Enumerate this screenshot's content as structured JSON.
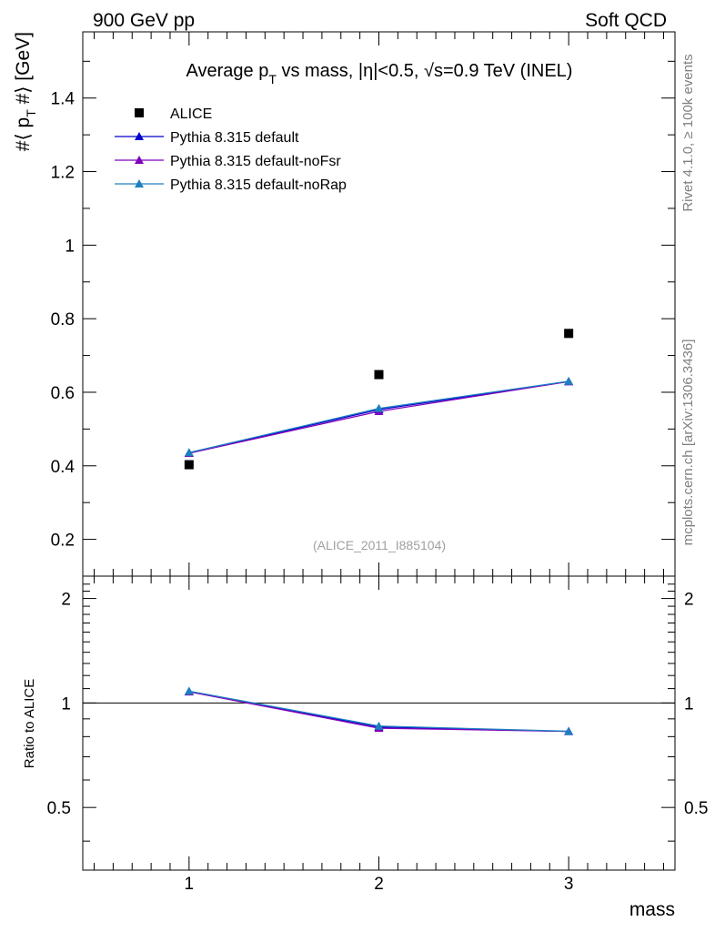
{
  "header": {
    "left_label": "900 GeV pp",
    "right_label": "Soft QCD"
  },
  "side_labels": {
    "rivet": "Rivet 4.1.0, ≥ 100k events",
    "mcplots": "mcplots.cern.ch [arXiv:1306.3436]"
  },
  "chart_data": {
    "type": "scatter",
    "title_parts": {
      "a": "Average p",
      "sub": "T",
      "b": " vs mass, |η|<0.5, √s=0.9 TeV (INEL)"
    },
    "watermark": "(ALICE_2011_I885104)",
    "ylabel_parts": {
      "a": "#⟨ p",
      "sub": "T",
      "b": " #⟩ [GeV]"
    },
    "xlabel": "mass",
    "ratio_ylabel": "Ratio to ALICE",
    "xlim": [
      0.44,
      3.56
    ],
    "ylim": [
      0.1,
      1.58
    ],
    "ratio_ylim": [
      0.33,
      2.32
    ],
    "x_ticks": [
      "1",
      "2",
      "3"
    ],
    "y_ticks": [
      "0.2",
      "0.4",
      "0.6",
      "0.8",
      "1",
      "1.2",
      "1.4"
    ],
    "ratio_y_ticks": [
      "0.5",
      "1",
      "2"
    ],
    "x": [
      1,
      2,
      3
    ],
    "data": {
      "name": "ALICE",
      "values": [
        0.403,
        0.648,
        0.76
      ],
      "color": "#000000"
    },
    "series": [
      {
        "name": "Pythia 8.315 default",
        "values": [
          0.435,
          0.553,
          0.629
        ],
        "ratio": [
          1.079,
          0.853,
          0.828
        ],
        "color": "#0000cc"
      },
      {
        "name": "Pythia 8.315 default-noFsr",
        "values": [
          0.434,
          0.548,
          0.629
        ],
        "ratio": [
          1.077,
          0.846,
          0.828
        ],
        "color": "#7f00bf"
      },
      {
        "name": "Pythia 8.315 default-noRap",
        "values": [
          0.436,
          0.556,
          0.63
        ],
        "ratio": [
          1.082,
          0.858,
          0.829
        ],
        "color": "#1e7fbf"
      }
    ]
  }
}
